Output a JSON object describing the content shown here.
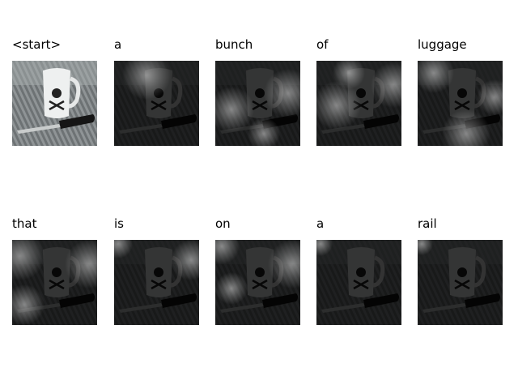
{
  "panels": [
    {
      "word": "<start>"
    },
    {
      "word": "a"
    },
    {
      "word": "bunch"
    },
    {
      "word": "of"
    },
    {
      "word": "luggage"
    },
    {
      "word": "that"
    },
    {
      "word": "is"
    },
    {
      "word": "on"
    },
    {
      "word": "a"
    },
    {
      "word": "rail"
    }
  ]
}
